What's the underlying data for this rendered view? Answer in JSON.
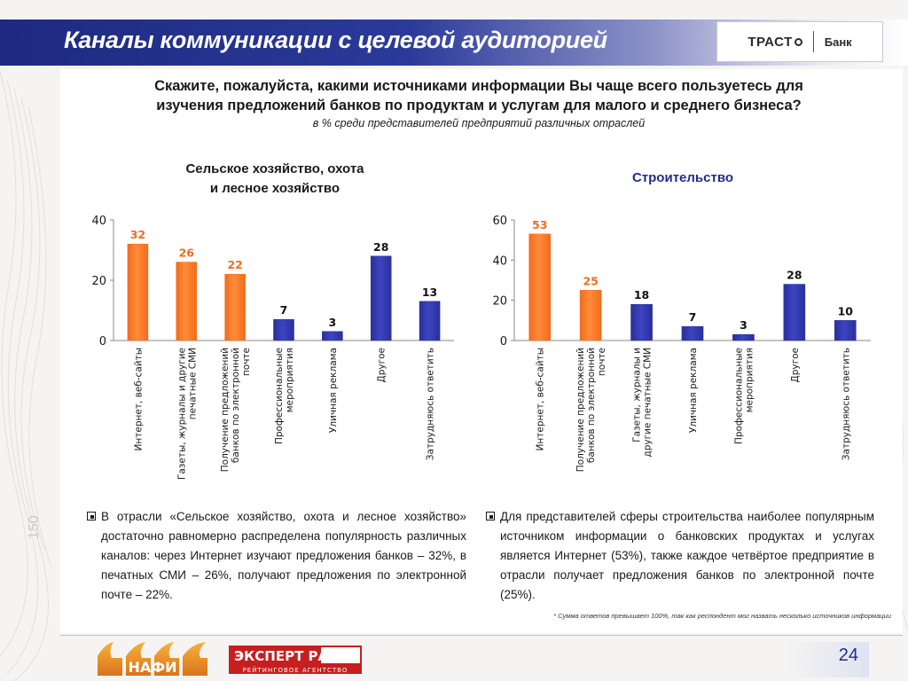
{
  "header": {
    "title": "Каналы коммуникации с целевой аудиторией",
    "brand": {
      "logo_text": "ТРАСТ",
      "bank_text": "Банк"
    }
  },
  "question": {
    "line1": "Скажите, пожалуйста, какими источниками информации Вы чаще всего пользуетесь для",
    "line2": "изучения предложений банков по продуктам и услугам для малого и среднего бизнеса?",
    "subtitle": "в % среди представителей предприятий различных отраслей"
  },
  "colors": {
    "orange": "#f26b1d",
    "blue": "#2a2f9a",
    "header_blue": "#1e2a80",
    "title_blue": "#1f2d8a"
  },
  "chart_data": [
    {
      "type": "bar",
      "title_line1": "Сельское хозяйство, охота",
      "title_line2": "и лесное хозяйство",
      "categories": [
        "Интернет, веб-сайты",
        "Газеты, журналы и другие печатные СМИ",
        "Получение предложений банков по электронной почте",
        "Профессиональные мероприятия",
        "Уличная реклама",
        "Другое",
        "Затрудняюсь ответить"
      ],
      "values": [
        32,
        26,
        22,
        7,
        3,
        28,
        13
      ],
      "highlight_colors": [
        "orange",
        "orange",
        "orange",
        "blue",
        "blue",
        "blue",
        "blue"
      ],
      "ylim": [
        0,
        40
      ],
      "yticks": [
        "0",
        "20",
        "40"
      ],
      "grid": false
    },
    {
      "type": "bar",
      "title_line1": "Строительство",
      "title_line2": "",
      "categories": [
        "Интернет, веб-сайты",
        "Получение предложений банков по электронной почте",
        "Газеты, журналы и другие печатные СМИ",
        "Уличная реклама",
        "Профессиональные мероприятия",
        "Другое",
        "Затрудняюсь ответить"
      ],
      "values": [
        53,
        25,
        18,
        7,
        3,
        28,
        10
      ],
      "highlight_colors": [
        "orange",
        "orange",
        "blue",
        "blue",
        "blue",
        "blue",
        "blue"
      ],
      "ylim": [
        0,
        60
      ],
      "yticks": [
        "0",
        "20",
        "40",
        "60"
      ],
      "grid": false
    }
  ],
  "notes": {
    "left": "В отрасли «Сельское хозяйство, охота и лесное хозяйство» достаточно равномерно распределена популярность различных каналов: через Интернет изучают предложения банков – 32%, в печатных СМИ – 26%, получают предложения по электронной почте – 22%.",
    "right": "Для представителей сферы строительства наиболее популярным источником информации о банковских продуктах и услугах является Интернет (53%), также каждое четвёртое предприятие в отрасли получает предложения банков по электронной почте (25%).",
    "footnote": "* Сумма ответов превышает 100%, так как респондент мог назвать несколько источников информации"
  },
  "footer": {
    "page_number": "24",
    "side_number": "150",
    "logo_left": "НАФИ",
    "logo_right_top": "ЭКСПЕРТ РА",
    "logo_right_bottom": "РЕЙТИНГОВОЕ АГЕНТСТВО"
  }
}
